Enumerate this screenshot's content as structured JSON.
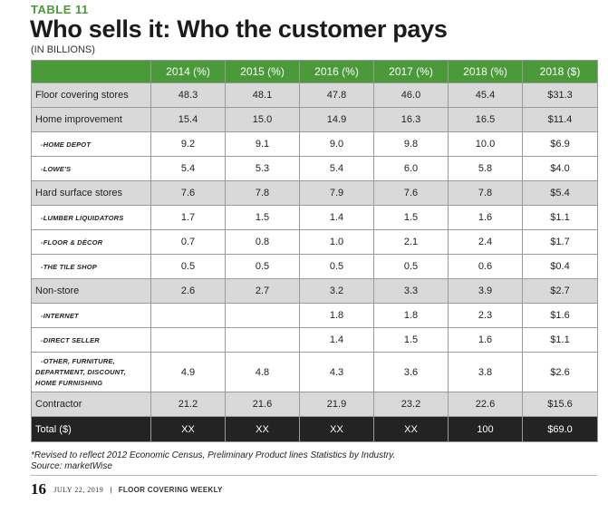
{
  "header": {
    "eyebrow": "TABLE 11",
    "title": "Who sells it: Who the customer pays",
    "subtitle": "(IN BILLIONS)"
  },
  "table": {
    "columns": [
      "2014 (%)",
      "2015 (%)",
      "2016 (%)",
      "2017 (%)",
      "2018 (%)",
      "2018 ($)"
    ],
    "rows": [
      {
        "label": "Floor covering stores",
        "values": [
          "48.3",
          "48.1",
          "47.8",
          "46.0",
          "45.4",
          "$31.3"
        ]
      },
      {
        "label": "Home improvement",
        "values": [
          "15.4",
          "15.0",
          "14.9",
          "16.3",
          "16.5",
          "$11.4"
        ]
      },
      {
        "label": "-HOME DEPOT",
        "values": [
          "9.2",
          "9.1",
          "9.0",
          "9.8",
          "10.0",
          "$6.9"
        ]
      },
      {
        "label": "-LOWE'S",
        "values": [
          "5.4",
          "5.3",
          "5.4",
          "6.0",
          "5.8",
          "$4.0"
        ]
      },
      {
        "label": "Hard surface stores",
        "values": [
          "7.6",
          "7.8",
          "7.9",
          "7.6",
          "7.8",
          "$5.4"
        ]
      },
      {
        "label": "-LUMBER LIQUIDATORS",
        "values": [
          "1.7",
          "1.5",
          "1.4",
          "1.5",
          "1.6",
          "$1.1"
        ]
      },
      {
        "label": "-FLOOR & DÉCOR",
        "values": [
          "0.7",
          "0.8",
          "1.0",
          "2.1",
          "2.4",
          "$1.7"
        ]
      },
      {
        "label": "-THE TILE SHOP",
        "values": [
          "0.5",
          "0.5",
          "0.5",
          "0.5",
          "0.6",
          "$0.4"
        ]
      },
      {
        "label": "Non-store",
        "values": [
          "2.6",
          "2.7",
          "3.2",
          "3.3",
          "3.9",
          "$2.7"
        ]
      },
      {
        "label": "-INTERNET",
        "values": [
          "",
          "",
          "1.8",
          "1.8",
          "2.3",
          "$1.6"
        ]
      },
      {
        "label": "-DIRECT SELLER",
        "values": [
          "",
          "",
          "1.4",
          "1.5",
          "1.6",
          "$1.1"
        ]
      },
      {
        "label_lines": [
          "-OTHER, FURNITURE,",
          "DEPARTMENT, DISCOUNT,",
          "HOME FURNISHING"
        ],
        "values": [
          "4.9",
          "4.8",
          "4.3",
          "3.6",
          "3.8",
          "$2.6"
        ]
      },
      {
        "label": "Contractor",
        "values": [
          "21.2",
          "21.6",
          "21.9",
          "23.2",
          "22.6",
          "$15.6"
        ]
      },
      {
        "label": "Total ($)",
        "values": [
          "XX",
          "XX",
          "XX",
          "XX",
          "100",
          "$69.0"
        ]
      }
    ]
  },
  "footnote": {
    "line1": "*Revised to reflect 2012 Economic Census, Preliminary Product lines Statistics by Industry.",
    "line2": "Source: marketWise"
  },
  "folio": {
    "page_number": "16",
    "date": "JULY 22, 2019",
    "separator": "|",
    "publication": "FLOOR COVERING WEEKLY"
  },
  "colors": {
    "accent_green": "#4a9a3a",
    "main_row_gray": "#d9d9d9",
    "total_row": "#232323"
  }
}
